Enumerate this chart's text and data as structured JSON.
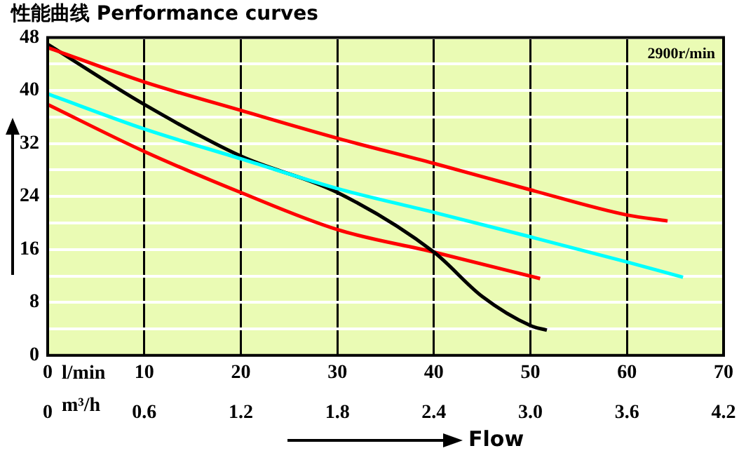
{
  "chart_data": {
    "type": "line",
    "title": "性能曲线 Performance curves",
    "xlabel": "Flow",
    "annotations": [
      "2900r/min",
      "l/min",
      "m³/h"
    ],
    "xlim": [
      0,
      70
    ],
    "xticks": [
      0,
      10,
      20,
      30,
      40,
      50,
      60,
      70
    ],
    "x2lim": [
      0,
      4.2
    ],
    "x2ticks": [
      0,
      0.6,
      1.2,
      1.8,
      2.4,
      {
        "value": 3,
        "label": "3.0"
      },
      3.6,
      4.2
    ],
    "ylim": [
      0,
      48
    ],
    "yticks": [
      0,
      {
        "value": 4,
        "label": null
      },
      8,
      {
        "value": 12,
        "label": null
      },
      16,
      {
        "value": 20,
        "label": null
      },
      24,
      {
        "value": 28,
        "label": null
      },
      32,
      {
        "value": 36,
        "label": null
      },
      40,
      {
        "value": 44,
        "label": null
      },
      48
    ],
    "grid": true,
    "legend": false,
    "marker": "none",
    "line_style": "solid",
    "series": [
      {
        "color": "#ff0000",
        "x": [
          0,
          10,
          20,
          30,
          40,
          50,
          60,
          64.2
        ],
        "values": [
          46.5,
          41.3,
          37,
          32.8,
          29,
          25,
          21.2,
          20.3
        ]
      },
      {
        "color": "#00ffff",
        "x": [
          0,
          10,
          20,
          30,
          40,
          50,
          60,
          65.8
        ],
        "values": [
          39.5,
          34.2,
          29.7,
          25.2,
          21.6,
          17.9,
          14.1,
          11.8
        ]
      },
      {
        "color": "#000000",
        "x": [
          0,
          10,
          20,
          30,
          40,
          45,
          50,
          51.7
        ],
        "values": [
          47,
          37.9,
          30.1,
          24.6,
          15.6,
          8.9,
          4.5,
          3.8
        ]
      },
      {
        "color": "#ff0000",
        "x": [
          0,
          10,
          20,
          30,
          40,
          51
        ],
        "values": [
          37.9,
          30.8,
          24.6,
          19,
          15.6,
          11.6
        ]
      }
    ]
  }
}
